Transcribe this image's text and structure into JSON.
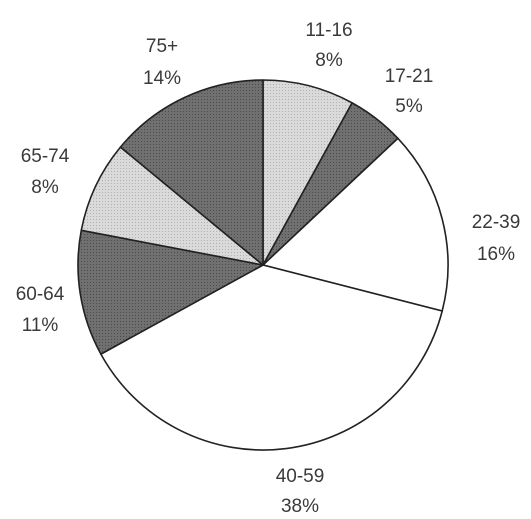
{
  "chart_data": {
    "type": "pie",
    "title": "",
    "slices": [
      {
        "label": "11-16",
        "pct_label": "8%",
        "value": 8,
        "color": "#d4d4d4"
      },
      {
        "label": "17-21",
        "pct_label": "5%",
        "value": 5,
        "color": "#6f6f6f"
      },
      {
        "label": "22-39",
        "pct_label": "16%",
        "value": 16,
        "color": "#ffffff"
      },
      {
        "label": "40-59",
        "pct_label": "38%",
        "value": 38,
        "color": "#ffffff"
      },
      {
        "label": "60-64",
        "pct_label": "11%",
        "value": 11,
        "color": "#5e5e5e"
      },
      {
        "label": "65-74",
        "pct_label": "8%",
        "value": 8,
        "color": "#d0d0d0"
      },
      {
        "label": "75+",
        "pct_label": "14%",
        "value": 14,
        "color": "#6a6a6a"
      }
    ]
  }
}
